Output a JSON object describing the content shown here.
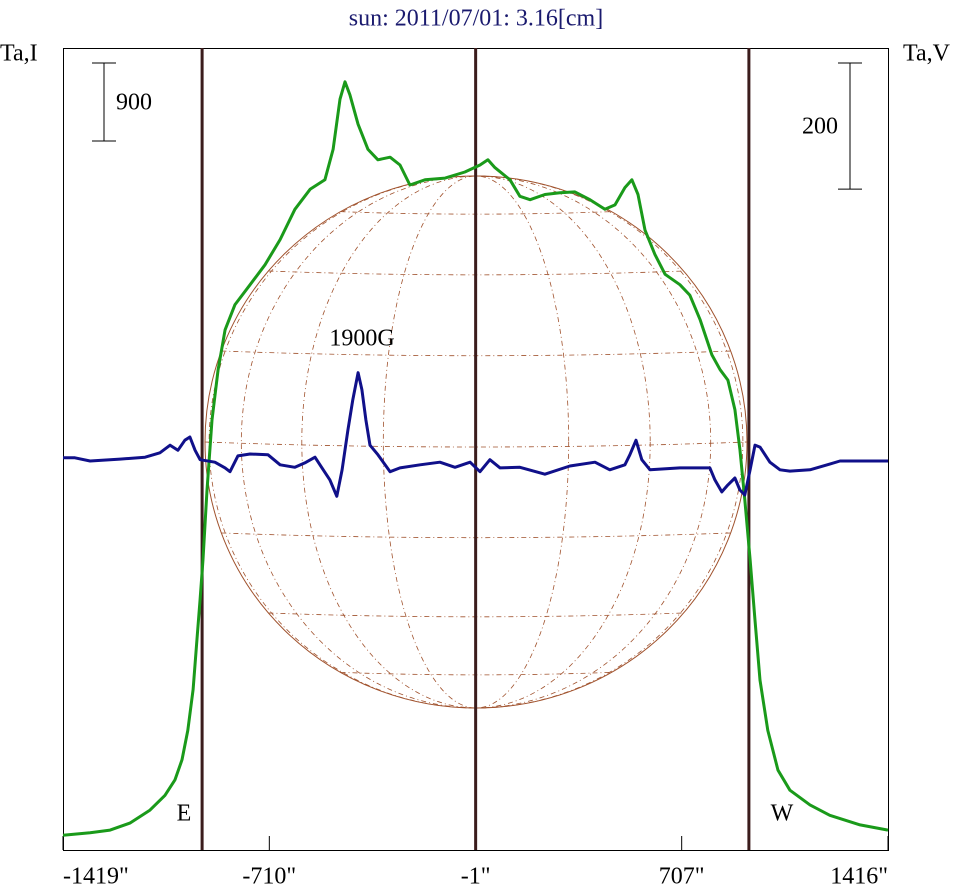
{
  "chart_data": {
    "type": "line",
    "title": "sun: 2011/07/01: 3.16[cm]",
    "y_label": "Ta,I",
    "y2_label": "Ta,V",
    "xlim": [
      -1419,
      1416
    ],
    "xticks": [
      {
        "value": -1419,
        "label": "-1419\""
      },
      {
        "value": -710,
        "label": "-710\""
      },
      {
        "value": -1,
        "label": "-1\""
      },
      {
        "value": 707,
        "label": "707\""
      },
      {
        "value": 1416,
        "label": "1416\""
      }
    ],
    "ylim": [
      0,
      9250
    ],
    "y2lim": [
      -617,
      655
    ],
    "vlines": [
      -941,
      -1,
      938
    ],
    "vline_color": "#3b1c1c",
    "disk_color": "#a0522d",
    "scale_bars": [
      {
        "value": 900,
        "axis": "y"
      },
      {
        "value": 200,
        "axis": "y2"
      }
    ],
    "annotations": [
      "E",
      "W",
      "1900G"
    ],
    "series": [
      {
        "color": "#1a9a1a",
        "x": [
          -1419,
          -1326,
          -1257,
          -1189,
          -1120,
          -1069,
          -1034,
          -1010,
          -990,
          -972,
          -959,
          -948,
          -938,
          -924,
          -907,
          -886,
          -862,
          -828,
          -776,
          -725,
          -673,
          -622,
          -570,
          -519,
          -491,
          -467,
          -450,
          -433,
          -405,
          -371,
          -337,
          -295,
          -261,
          -227,
          -175,
          -106,
          -38,
          14,
          41,
          65,
          117,
          151,
          186,
          237,
          289,
          340,
          392,
          443,
          478,
          512,
          536,
          557,
          581,
          615,
          650,
          701,
          735,
          770,
          811,
          839,
          866,
          890,
          907,
          924,
          942,
          959,
          976,
          1003,
          1038,
          1079,
          1148,
          1216,
          1320,
          1416
        ],
        "values": [
          170,
          200,
          230,
          310,
          460,
          630,
          810,
          1040,
          1380,
          1850,
          2420,
          2890,
          3350,
          4150,
          4960,
          5540,
          6000,
          6290,
          6520,
          6750,
          7040,
          7390,
          7620,
          7730,
          8080,
          8660,
          8860,
          8710,
          8370,
          8080,
          7960,
          7990,
          7900,
          7670,
          7730,
          7750,
          7820,
          7900,
          7960,
          7870,
          7730,
          7540,
          7500,
          7560,
          7580,
          7590,
          7500,
          7390,
          7440,
          7640,
          7730,
          7560,
          7150,
          6870,
          6640,
          6520,
          6400,
          6120,
          5710,
          5540,
          5420,
          5080,
          4620,
          4040,
          3350,
          2650,
          1960,
          1380,
          920,
          690,
          520,
          400,
          290,
          230
        ]
      },
      {
        "color": "#10108a",
        "axis": "y2",
        "x": [
          -1419,
          -1378,
          -1326,
          -1223,
          -1137,
          -1086,
          -1051,
          -1024,
          -1000,
          -983,
          -965,
          -948,
          -897,
          -862,
          -845,
          -818,
          -776,
          -715,
          -673,
          -622,
          -588,
          -553,
          -529,
          -502,
          -478,
          -460,
          -440,
          -423,
          -405,
          -392,
          -378,
          -364,
          -337,
          -295,
          -261,
          -192,
          -124,
          -72,
          -20,
          14,
          48,
          83,
          151,
          237,
          323,
          409,
          460,
          512,
          529,
          550,
          570,
          598,
          701,
          804,
          821,
          845,
          866,
          890,
          907,
          924,
          942,
          959,
          976,
          1010,
          1045,
          1079,
          1148,
          1216,
          1251,
          1416
        ],
        "values": [
          5,
          5,
          0,
          3,
          6,
          13,
          25,
          17,
          33,
          38,
          17,
          2,
          -2,
          -11,
          -17,
          8,
          11,
          10,
          -6,
          -10,
          -3,
          6,
          -11,
          -30,
          -56,
          -14,
          49,
          97,
          140,
          113,
          65,
          25,
          10,
          -17,
          -11,
          -6,
          -2,
          -10,
          -2,
          -17,
          2,
          -11,
          -10,
          -21,
          -8,
          -2,
          -14,
          -6,
          10,
          33,
          2,
          -14,
          -11,
          -11,
          -30,
          -49,
          -38,
          -27,
          -46,
          -54,
          -14,
          25,
          22,
          -2,
          -14,
          -16,
          -14,
          -5,
          0,
          0
        ]
      }
    ]
  }
}
